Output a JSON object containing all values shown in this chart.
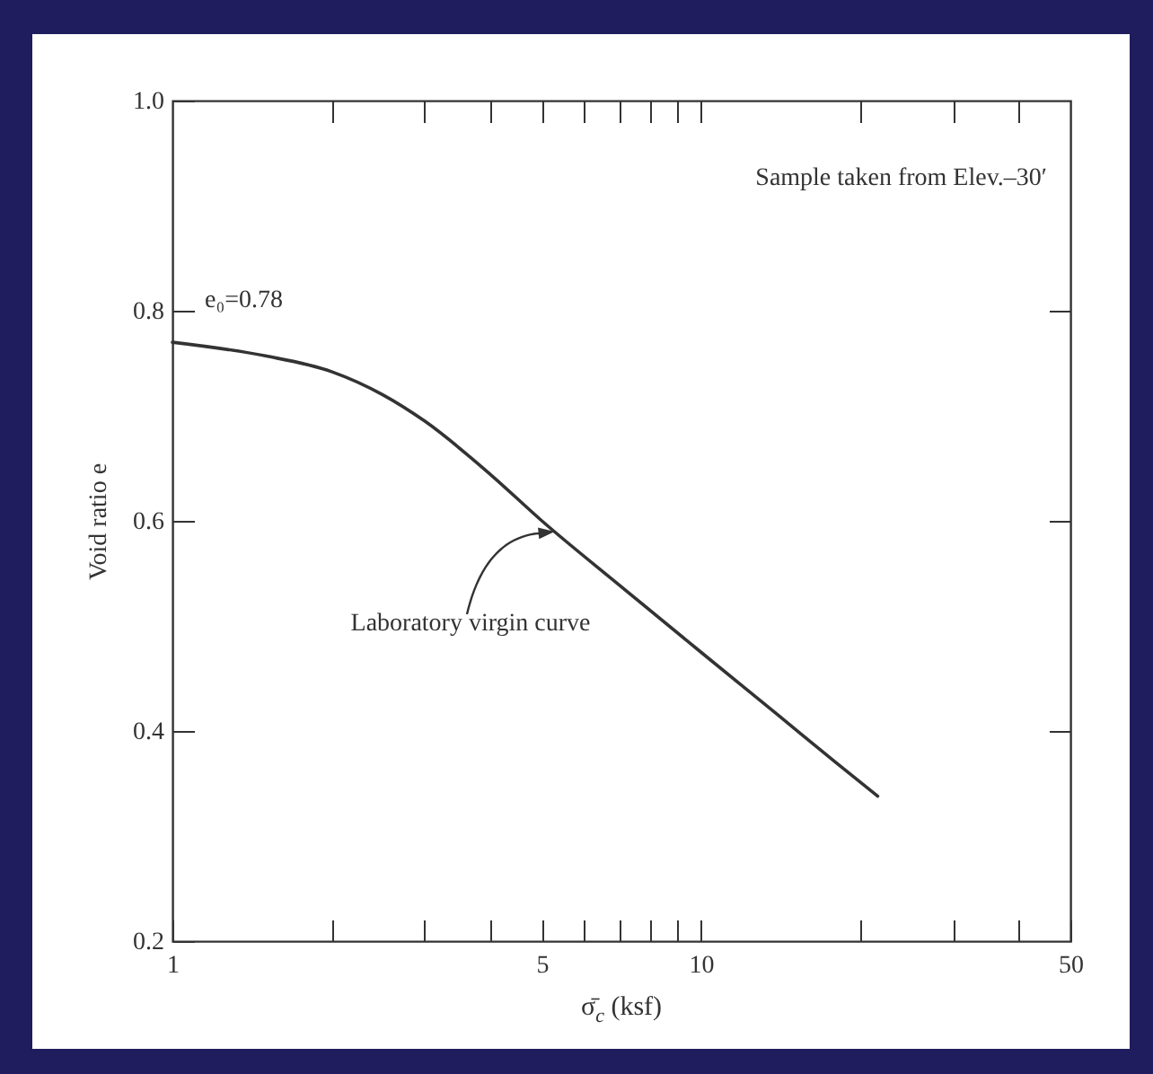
{
  "chart_data": {
    "type": "line",
    "xlabel": "σ̄$_{c}$ (ksf)",
    "ylabel": "Void ratio e",
    "log": "x",
    "grid": false,
    "xlim": [
      1,
      50
    ],
    "xticks": [
      1,
      {
        "value": 2,
        "label": null
      },
      {
        "value": 3,
        "label": null
      },
      {
        "value": 4,
        "label": null
      },
      5,
      {
        "value": 6,
        "label": null
      },
      {
        "value": 7,
        "label": null
      },
      {
        "value": 8,
        "label": null
      },
      {
        "value": 9,
        "label": null
      },
      10,
      {
        "value": 20,
        "label": null
      },
      {
        "value": 30,
        "label": null
      },
      {
        "value": 40,
        "label": null
      },
      50
    ],
    "ylim": [
      0.2,
      1.0
    ],
    "yticks": [
      0.2,
      0.4,
      0.6,
      0.8,
      {
        "value": 1.0,
        "label": "1.0"
      }
    ],
    "x": [
      1,
      1.5,
      2,
      2.5,
      3,
      4,
      5,
      7,
      10,
      14,
      18,
      21.6
    ],
    "series": [
      {
        "color": "#333333",
        "values": [
          0.77,
          0.757,
          0.742,
          0.72,
          0.695,
          0.644,
          0.6,
          0.539,
          0.475,
          0.415,
          0.37,
          0.338
        ]
      }
    ],
    "annotations": [
      "e₀=0.78",
      "Laboratory virgin curve",
      "Sample taken from Elev.–30′"
    ]
  }
}
